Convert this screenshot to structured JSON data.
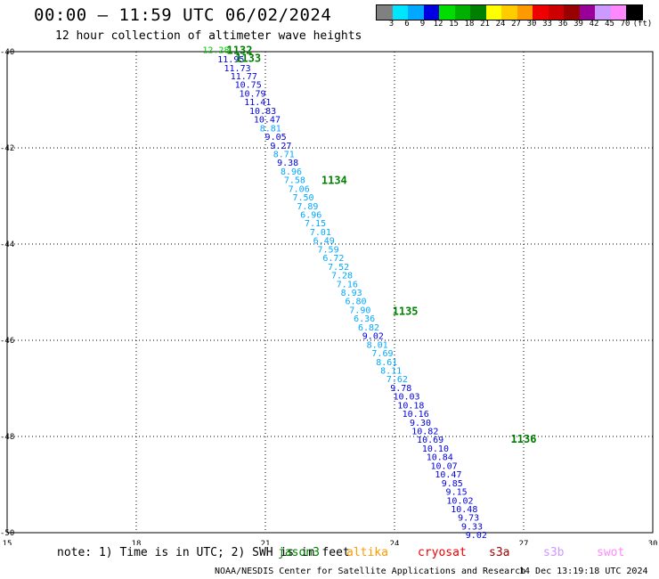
{
  "header": {
    "title": "00:00 – 11:59 UTC 06/02/2024",
    "subtitle": "12 hour collection of altimeter wave heights"
  },
  "colorbar": {
    "colors": [
      "#808080",
      "#00e5ff",
      "#00a8ff",
      "#0000e0",
      "#00dd00",
      "#00b000",
      "#008000",
      "#ffff00",
      "#ffcc00",
      "#ff9900",
      "#ee0000",
      "#cc0000",
      "#990000",
      "#990099",
      "#cc99ff",
      "#ff88ff",
      "#000000"
    ],
    "labels": [
      "3",
      "6",
      "9",
      "12",
      "15",
      "18",
      "21",
      "24",
      "27",
      "30",
      "33",
      "36",
      "39",
      "42",
      "45",
      "70",
      "(ft)"
    ]
  },
  "footer": {
    "note": "note: 1) Time is in UTC; 2) SWH is in feet",
    "legend": [
      {
        "name": "jason3",
        "color": "#008000"
      },
      {
        "name": "altika",
        "color": "#ff9900"
      },
      {
        "name": "cryosat",
        "color": "#ee0000"
      },
      {
        "name": "s3a",
        "color": "#990000"
      },
      {
        "name": "s3b",
        "color": "#cc99ff"
      },
      {
        "name": "swot",
        "color": "#ff88ff"
      }
    ],
    "credit": "NOAA/NESDIS Center for Satellite Applications and Research",
    "timestamp": "14 Dec 13:19:18 UTC 2024"
  },
  "chart_data": {
    "type": "scatter",
    "xlim": [
      15,
      30
    ],
    "ylim": [
      -50,
      -40
    ],
    "x_ticks": [
      15,
      18,
      21,
      24,
      27,
      30
    ],
    "y_ticks": [
      -40,
      -42,
      -44,
      -46,
      -48,
      -50
    ],
    "grid": true,
    "points": [
      {
        "lon": 19.85,
        "lat": -39.95,
        "v": "12.28",
        "c": "#00cc00"
      },
      {
        "lon": 20.2,
        "lat": -40.15,
        "v": "11.95",
        "c": "#0000e0"
      },
      {
        "lon": 20.35,
        "lat": -40.33,
        "v": "11.73",
        "c": "#0000e0"
      },
      {
        "lon": 20.5,
        "lat": -40.5,
        "v": "11.77",
        "c": "#0000e0"
      },
      {
        "lon": 20.6,
        "lat": -40.68,
        "v": "10.75",
        "c": "#0000e0"
      },
      {
        "lon": 20.7,
        "lat": -40.86,
        "v": "10.79",
        "c": "#0000e0"
      },
      {
        "lon": 20.82,
        "lat": -41.04,
        "v": "11.41",
        "c": "#0000e0"
      },
      {
        "lon": 20.94,
        "lat": -41.22,
        "v": "10.83",
        "c": "#0000e0"
      },
      {
        "lon": 21.04,
        "lat": -41.4,
        "v": "10.47",
        "c": "#0000e0"
      },
      {
        "lon": 21.12,
        "lat": -41.58,
        "v": "8.81",
        "c": "#00a8ff"
      },
      {
        "lon": 21.24,
        "lat": -41.76,
        "v": "9.05",
        "c": "#0000e0"
      },
      {
        "lon": 21.36,
        "lat": -41.94,
        "v": "9.27",
        "c": "#0000e0"
      },
      {
        "lon": 21.43,
        "lat": -42.12,
        "v": "8.71",
        "c": "#00a8ff"
      },
      {
        "lon": 21.52,
        "lat": -42.3,
        "v": "9.38",
        "c": "#0000e0"
      },
      {
        "lon": 21.6,
        "lat": -42.48,
        "v": "8.96",
        "c": "#00a8ff"
      },
      {
        "lon": 21.68,
        "lat": -42.66,
        "v": "7.58",
        "c": "#00a8ff"
      },
      {
        "lon": 21.78,
        "lat": -42.84,
        "v": "7.06",
        "c": "#00a8ff"
      },
      {
        "lon": 21.88,
        "lat": -43.02,
        "v": "7.50",
        "c": "#00a8ff"
      },
      {
        "lon": 21.98,
        "lat": -43.2,
        "v": "7.89",
        "c": "#00a8ff"
      },
      {
        "lon": 22.06,
        "lat": -43.38,
        "v": "6.96",
        "c": "#00a8ff"
      },
      {
        "lon": 22.16,
        "lat": -43.56,
        "v": "7.15",
        "c": "#00a8ff"
      },
      {
        "lon": 22.28,
        "lat": -43.74,
        "v": "7.01",
        "c": "#00a8ff"
      },
      {
        "lon": 22.36,
        "lat": -43.92,
        "v": "6.49",
        "c": "#00a8ff"
      },
      {
        "lon": 22.46,
        "lat": -44.1,
        "v": "7.59",
        "c": "#00a8ff"
      },
      {
        "lon": 22.58,
        "lat": -44.28,
        "v": "6.72",
        "c": "#00a8ff"
      },
      {
        "lon": 22.7,
        "lat": -44.46,
        "v": "7.52",
        "c": "#00a8ff"
      },
      {
        "lon": 22.78,
        "lat": -44.64,
        "v": "7.28",
        "c": "#00a8ff"
      },
      {
        "lon": 22.9,
        "lat": -44.82,
        "v": "7.16",
        "c": "#00a8ff"
      },
      {
        "lon": 23.0,
        "lat": -45.0,
        "v": "8.93",
        "c": "#00a8ff"
      },
      {
        "lon": 23.1,
        "lat": -45.18,
        "v": "6.80",
        "c": "#00a8ff"
      },
      {
        "lon": 23.2,
        "lat": -45.36,
        "v": "7.90",
        "c": "#00a8ff"
      },
      {
        "lon": 23.3,
        "lat": -45.54,
        "v": "6.36",
        "c": "#00a8ff"
      },
      {
        "lon": 23.4,
        "lat": -45.72,
        "v": "6.82",
        "c": "#00a8ff"
      },
      {
        "lon": 23.5,
        "lat": -45.9,
        "v": "9.02",
        "c": "#0000e0"
      },
      {
        "lon": 23.6,
        "lat": -46.08,
        "v": "8.01",
        "c": "#00a8ff"
      },
      {
        "lon": 23.72,
        "lat": -46.26,
        "v": "7.69",
        "c": "#00a8ff"
      },
      {
        "lon": 23.82,
        "lat": -46.44,
        "v": "8.61",
        "c": "#00a8ff"
      },
      {
        "lon": 23.92,
        "lat": -46.62,
        "v": "8.11",
        "c": "#00a8ff"
      },
      {
        "lon": 24.06,
        "lat": -46.8,
        "v": "7.62",
        "c": "#00a8ff"
      },
      {
        "lon": 24.15,
        "lat": -46.98,
        "v": "9.78",
        "c": "#0000e0"
      },
      {
        "lon": 24.28,
        "lat": -47.16,
        "v": "10.03",
        "c": "#0000e0"
      },
      {
        "lon": 24.38,
        "lat": -47.34,
        "v": "10.18",
        "c": "#0000e0"
      },
      {
        "lon": 24.49,
        "lat": -47.52,
        "v": "10.16",
        "c": "#0000e0"
      },
      {
        "lon": 24.6,
        "lat": -47.7,
        "v": "9.30",
        "c": "#0000e0"
      },
      {
        "lon": 24.71,
        "lat": -47.88,
        "v": "10.82",
        "c": "#0000e0"
      },
      {
        "lon": 24.83,
        "lat": -48.06,
        "v": "10.69",
        "c": "#0000e0"
      },
      {
        "lon": 24.95,
        "lat": -48.24,
        "v": "10.10",
        "c": "#0000e0"
      },
      {
        "lon": 25.05,
        "lat": -48.42,
        "v": "10.84",
        "c": "#0000e0"
      },
      {
        "lon": 25.15,
        "lat": -48.6,
        "v": "10.07",
        "c": "#0000e0"
      },
      {
        "lon": 25.25,
        "lat": -48.78,
        "v": "10.47",
        "c": "#0000e0"
      },
      {
        "lon": 25.34,
        "lat": -48.96,
        "v": "9.85",
        "c": "#0000e0"
      },
      {
        "lon": 25.44,
        "lat": -49.14,
        "v": "9.15",
        "c": "#0000e0"
      },
      {
        "lon": 25.52,
        "lat": -49.32,
        "v": "10.02",
        "c": "#0000e0"
      },
      {
        "lon": 25.62,
        "lat": -49.5,
        "v": "10.48",
        "c": "#0000e0"
      },
      {
        "lon": 25.72,
        "lat": -49.68,
        "v": "9.73",
        "c": "#0000e0"
      },
      {
        "lon": 25.8,
        "lat": -49.86,
        "v": "9.33",
        "c": "#0000e0"
      },
      {
        "lon": 25.9,
        "lat": -50.04,
        "v": "9.02",
        "c": "#0000e0"
      }
    ],
    "time_labels": [
      {
        "lon": 20.4,
        "lat": -39.97,
        "text": "1132",
        "c": "#008000"
      },
      {
        "lon": 20.6,
        "lat": -40.14,
        "text": "1133",
        "c": "#008000"
      },
      {
        "lon": 22.6,
        "lat": -42.68,
        "text": "1134",
        "c": "#008000"
      },
      {
        "lon": 24.25,
        "lat": -45.4,
        "text": "1135",
        "c": "#008000"
      },
      {
        "lon": 27.0,
        "lat": -48.06,
        "text": "1136",
        "c": "#008000"
      }
    ]
  }
}
